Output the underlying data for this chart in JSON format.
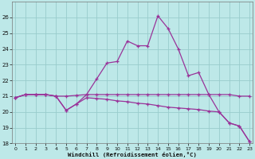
{
  "x": [
    0,
    1,
    2,
    3,
    4,
    5,
    6,
    7,
    8,
    9,
    10,
    11,
    12,
    13,
    14,
    15,
    16,
    17,
    18,
    19,
    20,
    21,
    22,
    23
  ],
  "line_flat": [
    20.9,
    21.1,
    21.1,
    21.1,
    21.0,
    21.0,
    21.05,
    21.1,
    21.1,
    21.1,
    21.1,
    21.1,
    21.1,
    21.1,
    21.1,
    21.1,
    21.1,
    21.1,
    21.1,
    21.1,
    21.1,
    21.1,
    21.0,
    21.0
  ],
  "line_decline": [
    20.9,
    21.1,
    21.1,
    21.1,
    21.0,
    20.1,
    20.5,
    20.9,
    20.85,
    20.8,
    20.7,
    20.65,
    20.55,
    20.5,
    20.4,
    20.3,
    20.25,
    20.2,
    20.15,
    20.05,
    20.0,
    19.3,
    19.1,
    18.1
  ],
  "line_peak": [
    20.9,
    21.1,
    21.1,
    21.1,
    21.0,
    20.1,
    20.5,
    21.1,
    22.1,
    23.1,
    23.2,
    24.5,
    24.2,
    24.2,
    26.1,
    25.3,
    24.0,
    22.3,
    22.5,
    21.1,
    20.0,
    19.3,
    19.1,
    18.1
  ],
  "line_color": "#993399",
  "bg_color": "#bde8e8",
  "grid_color": "#99cccc",
  "xlabel": "Windchill (Refroidissement éolien,°C)",
  "ylim_min": 18,
  "ylim_max": 27,
  "xlim_min": -0.3,
  "xlim_max": 23.3,
  "yticks": [
    18,
    19,
    20,
    21,
    22,
    23,
    24,
    25,
    26
  ],
  "xticks": [
    0,
    1,
    2,
    3,
    4,
    5,
    6,
    7,
    8,
    9,
    10,
    11,
    12,
    13,
    14,
    15,
    16,
    17,
    18,
    19,
    20,
    21,
    22,
    23
  ]
}
